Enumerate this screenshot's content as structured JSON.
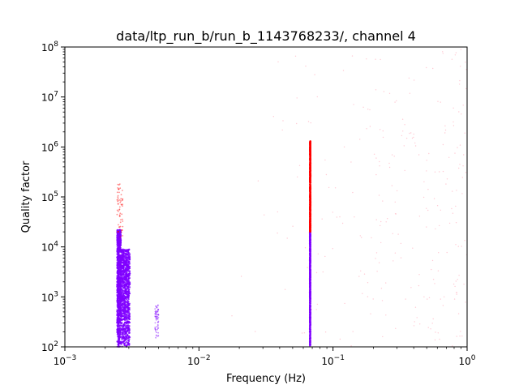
{
  "chart_data": {
    "type": "scatter",
    "title": "data/ltp_run_b/run_b_1143768233/, channel 4",
    "xlabel": "Frequency (Hz)",
    "ylabel": "Quality factor",
    "xscale": "log",
    "yscale": "log",
    "xlim": [
      0.001,
      1
    ],
    "ylim": [
      100,
      100000000
    ],
    "grid": false,
    "x_ticks": [
      {
        "base": "10",
        "exp": "−3",
        "value": 0.001
      },
      {
        "base": "10",
        "exp": "−2",
        "value": 0.01
      },
      {
        "base": "10",
        "exp": "−1",
        "value": 0.1
      },
      {
        "base": "10",
        "exp": "0",
        "value": 1
      }
    ],
    "y_ticks": [
      {
        "base": "10",
        "exp": "2",
        "value": 100
      },
      {
        "base": "10",
        "exp": "3",
        "value": 1000
      },
      {
        "base": "10",
        "exp": "4",
        "value": 10000
      },
      {
        "base": "10",
        "exp": "5",
        "value": 100000
      },
      {
        "base": "10",
        "exp": "6",
        "value": 1000000
      },
      {
        "base": "10",
        "exp": "7",
        "value": 10000000
      },
      {
        "base": "10",
        "exp": "8",
        "value": 100000000
      }
    ],
    "colors": {
      "low": "#7f00ff",
      "high": "#ff0000",
      "faint": "#ff9fb0"
    },
    "clusters": [
      {
        "x_min": 0.00245,
        "x_max": 0.00262,
        "y_min": 100,
        "y_max": 22000,
        "density": "high",
        "color": "low"
      },
      {
        "x_min": 0.00262,
        "x_max": 0.00305,
        "y_min": 100,
        "y_max": 9000,
        "density": "high",
        "color": "low"
      },
      {
        "x_min": 0.0047,
        "x_max": 0.005,
        "y_min": 150,
        "y_max": 700,
        "density": "low",
        "color": "low"
      },
      {
        "x_min": 0.0671,
        "x_max": 0.0679,
        "y_min": 100,
        "y_max": 20000,
        "density": "high",
        "color": "low"
      },
      {
        "x_min": 0.0672,
        "x_max": 0.068,
        "y_min": 20000,
        "y_max": 1300000,
        "density": "high",
        "color": "high"
      },
      {
        "x_min": 0.00245,
        "x_max": 0.0027,
        "y_min": 15000,
        "y_max": 190000,
        "density": "low",
        "color": "high"
      }
    ],
    "scatter_region": {
      "x_min": 0.01,
      "x_max": 1,
      "y_min": 100,
      "y_max": 100000000,
      "color": "faint"
    }
  }
}
